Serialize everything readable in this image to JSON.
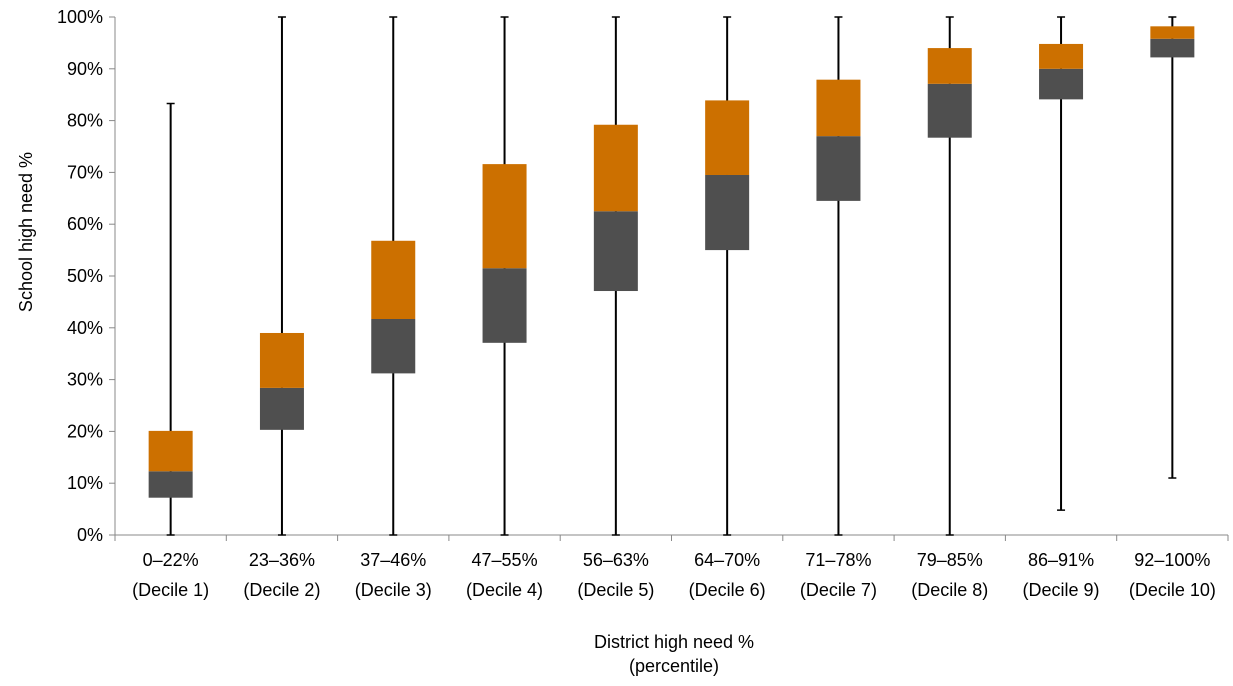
{
  "chart_data": {
    "type": "box",
    "title": "",
    "xlabel_lines": [
      "District high need %",
      "(percentile)"
    ],
    "ylabel": "School high need %",
    "ylim": [
      0,
      100
    ],
    "y_ticks": [
      "0%",
      "10%",
      "20%",
      "30%",
      "40%",
      "50%",
      "60%",
      "70%",
      "80%",
      "90%",
      "100%"
    ],
    "categories": [
      {
        "range": "0–22%",
        "decile": "(Decile 1)",
        "min": 0,
        "q1": 7.2,
        "median": 12.3,
        "q3": 20.1,
        "max": 83.3
      },
      {
        "range": "23–36%",
        "decile": "(Decile 2)",
        "min": 0,
        "q1": 20.3,
        "median": 28.4,
        "q3": 39.0,
        "max": 100
      },
      {
        "range": "37–46%",
        "decile": "(Decile 3)",
        "min": 0,
        "q1": 31.2,
        "median": 41.7,
        "q3": 56.8,
        "max": 100
      },
      {
        "range": "47–55%",
        "decile": "(Decile 4)",
        "min": 0,
        "q1": 37.1,
        "median": 51.5,
        "q3": 71.6,
        "max": 100
      },
      {
        "range": "56–63%",
        "decile": "(Decile 5)",
        "min": 0,
        "q1": 47.1,
        "median": 62.5,
        "q3": 79.2,
        "max": 100
      },
      {
        "range": "64–70%",
        "decile": "(Decile 6)",
        "min": 0,
        "q1": 55.0,
        "median": 69.5,
        "q3": 83.9,
        "max": 100
      },
      {
        "range": "71–78%",
        "decile": "(Decile 7)",
        "min": 0,
        "q1": 64.5,
        "median": 77.0,
        "q3": 87.9,
        "max": 100
      },
      {
        "range": "79–85%",
        "decile": "(Decile 8)",
        "min": 0,
        "q1": 76.7,
        "median": 87.1,
        "q3": 94.0,
        "max": 100
      },
      {
        "range": "86–91%",
        "decile": "(Decile 9)",
        "min": 4.8,
        "q1": 84.1,
        "median": 90.0,
        "q3": 94.8,
        "max": 100
      },
      {
        "range": "92–100%",
        "decile": "(Decile 10)",
        "min": 11.0,
        "q1": 92.2,
        "median": 95.8,
        "q3": 98.2,
        "max": 100
      }
    ],
    "colors": {
      "lower_box": "#4f4f4f",
      "upper_box": "#cc7000",
      "whisker": "#000000",
      "axis": "#888888"
    },
    "grid": false,
    "legend": "none"
  }
}
